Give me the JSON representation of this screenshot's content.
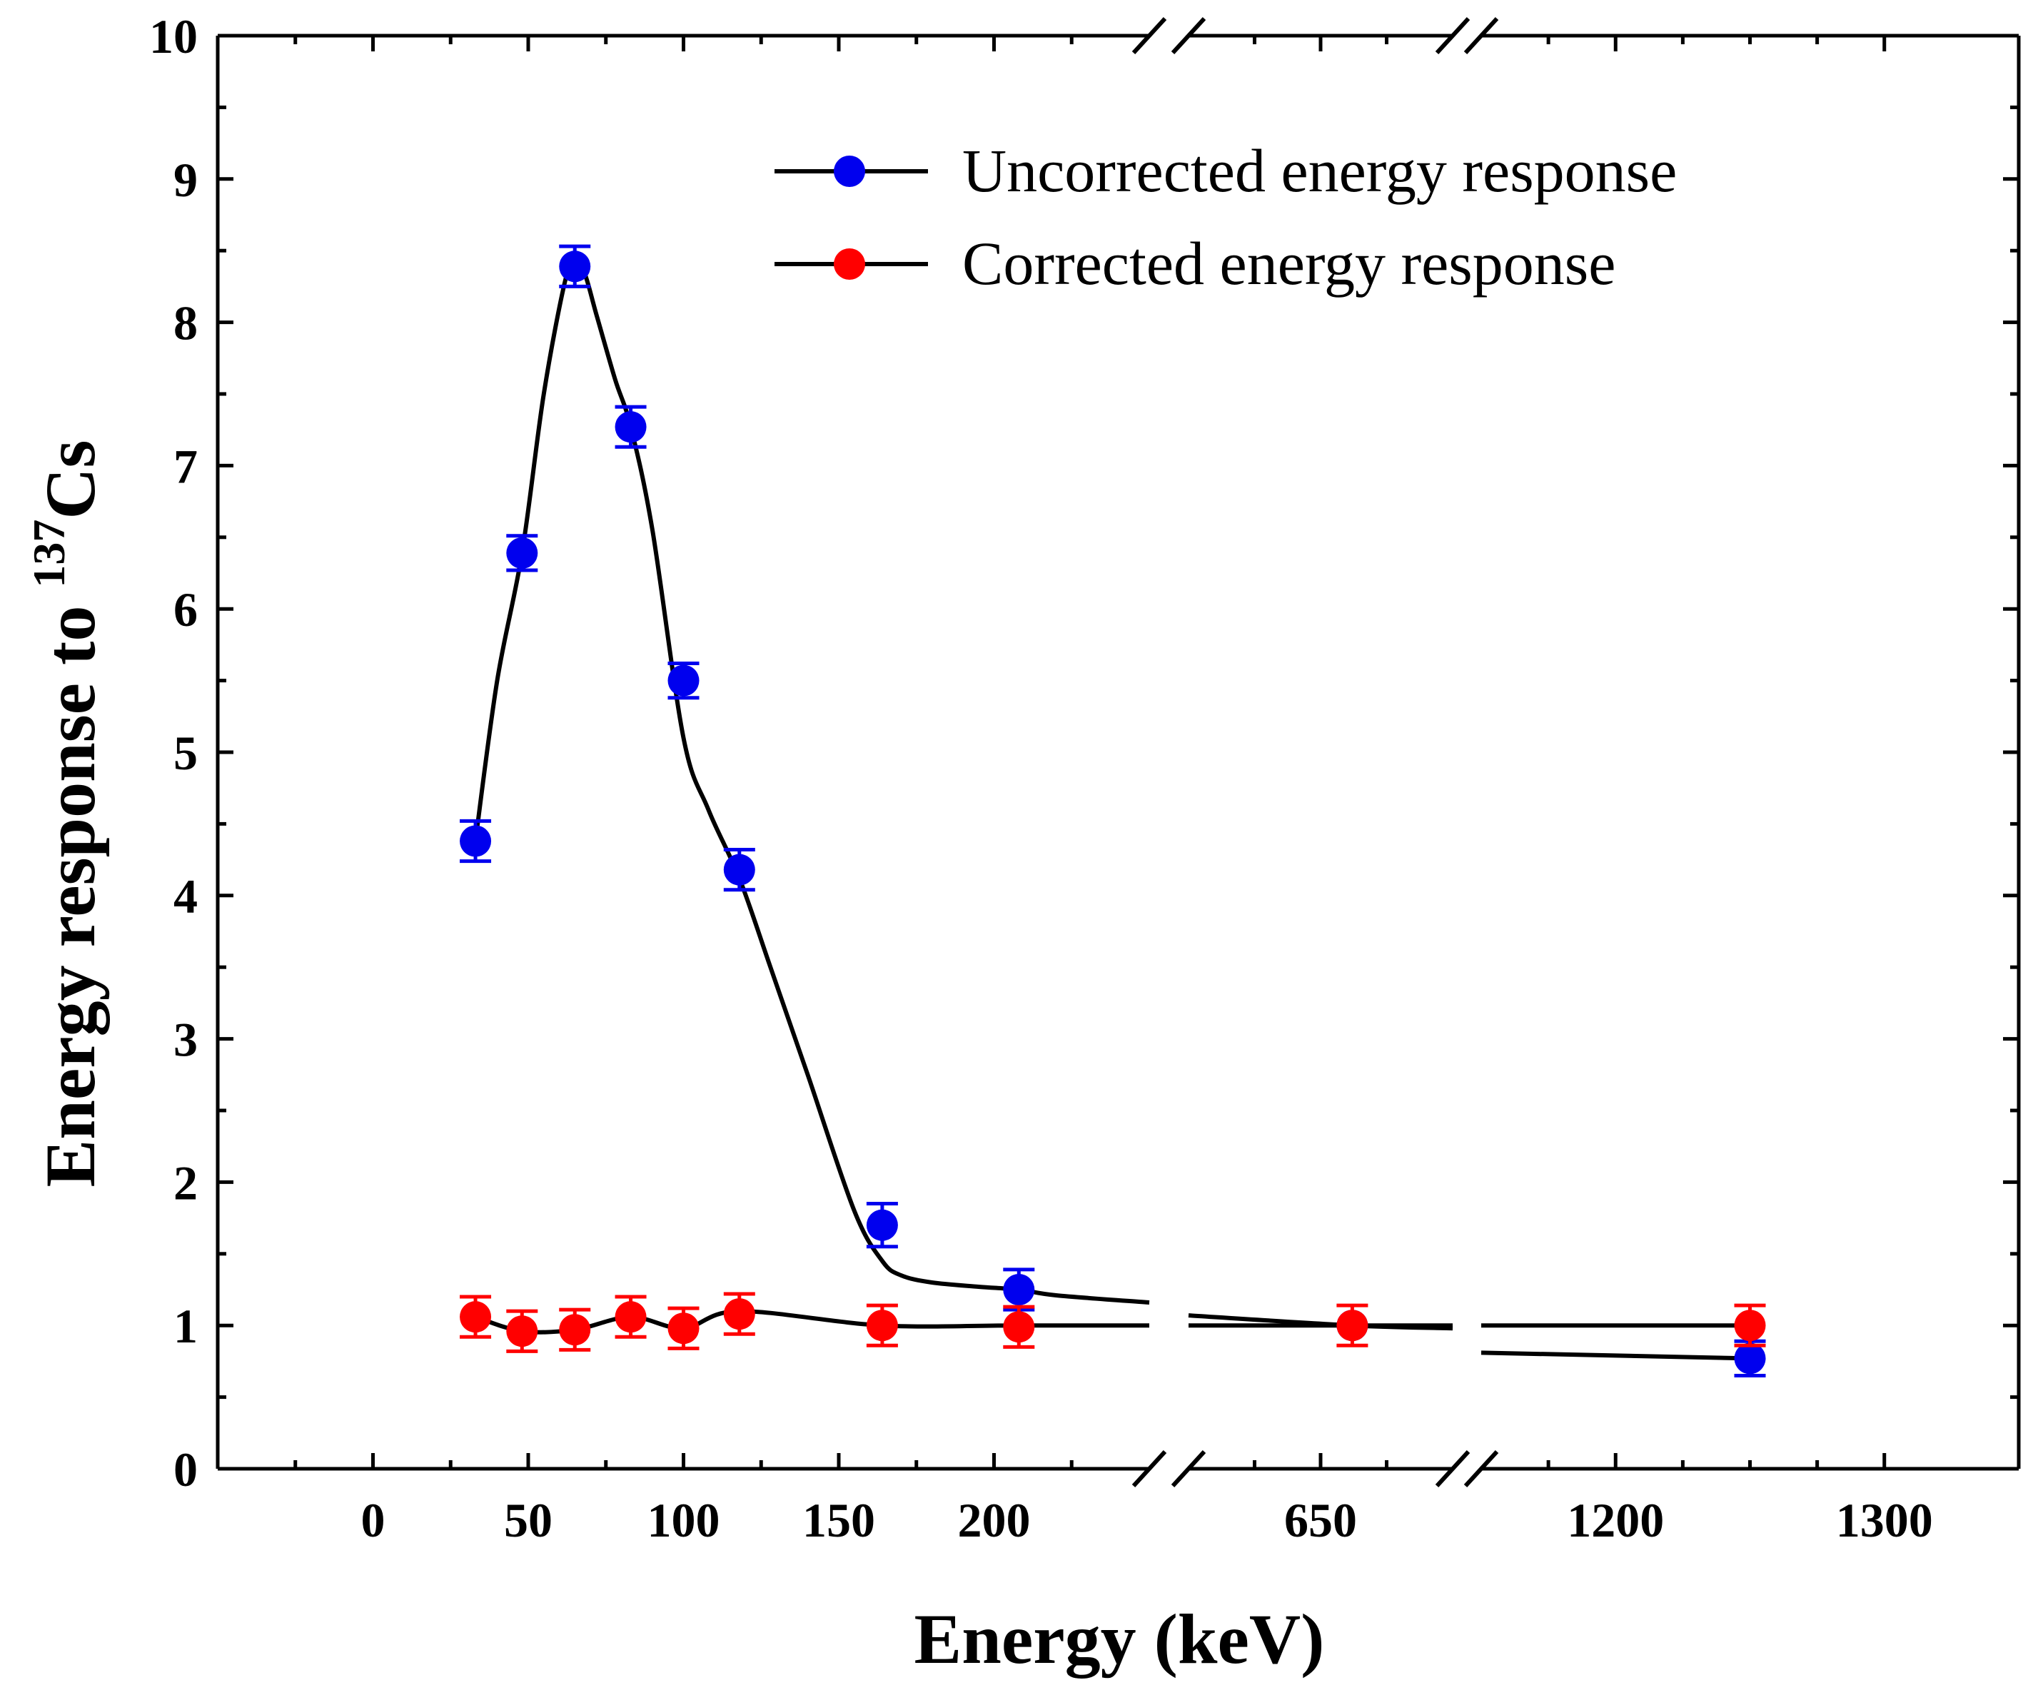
{
  "chart_data": {
    "type": "line",
    "title": "",
    "xlabel": "Energy (keV)",
    "ylabel_main": "Energy response to ",
    "ylabel_sup": "137",
    "ylabel_tail": "Cs",
    "ylim": [
      0,
      10
    ],
    "yticks": [
      "0",
      "1",
      "2",
      "3",
      "4",
      "5",
      "6",
      "7",
      "8",
      "9",
      "10"
    ],
    "x_axis_segments": [
      {
        "range": [
          -50,
          250
        ]
      },
      {
        "range": [
          600,
          700
        ]
      },
      {
        "range": [
          1150,
          1350
        ]
      }
    ],
    "xticks": [
      {
        "value": 0,
        "label": "0"
      },
      {
        "value": 50,
        "label": "50"
      },
      {
        "value": 100,
        "label": "100"
      },
      {
        "value": 150,
        "label": "150"
      },
      {
        "value": 200,
        "label": "200"
      },
      {
        "value": 650,
        "label": "650"
      },
      {
        "value": 1200,
        "label": "1200"
      },
      {
        "value": 1300,
        "label": "1300"
      }
    ],
    "legend_position": "top-right",
    "series": [
      {
        "name": "Uncorrected energy response",
        "color": "#0000ee",
        "x": [
          33,
          48,
          65,
          83,
          100,
          118,
          164,
          208,
          662,
          1250
        ],
        "y": [
          4.38,
          6.39,
          8.39,
          7.27,
          5.5,
          4.18,
          1.7,
          1.25,
          1.0,
          0.77
        ],
        "err": [
          0.14,
          0.12,
          0.14,
          0.14,
          0.12,
          0.14,
          0.15,
          0.14,
          0.0,
          0.12
        ],
        "curve_x": [
          33,
          40,
          48,
          55,
          62,
          65,
          68,
          72,
          78,
          83,
          90,
          100,
          108,
          118,
          128,
          140,
          155,
          164,
          170,
          180,
          195,
          208,
          220,
          250,
          600,
          662,
          700,
          1150,
          1250
        ],
        "curve_y": [
          4.38,
          5.5,
          6.39,
          7.5,
          8.3,
          8.39,
          8.35,
          8.05,
          7.6,
          7.27,
          6.55,
          5.1,
          4.6,
          4.12,
          3.5,
          2.75,
          1.8,
          1.45,
          1.35,
          1.3,
          1.27,
          1.25,
          1.21,
          1.16,
          1.07,
          1.0,
          0.98,
          0.81,
          0.77
        ]
      },
      {
        "name": "Corrected energy response",
        "color": "#ff0000",
        "x": [
          33,
          48,
          65,
          83,
          100,
          118,
          164,
          208,
          662,
          1250
        ],
        "y": [
          1.06,
          0.96,
          0.97,
          1.06,
          0.98,
          1.08,
          1.0,
          0.99,
          1.0,
          1.0
        ],
        "err": [
          0.14,
          0.14,
          0.14,
          0.14,
          0.14,
          0.14,
          0.14,
          0.14,
          0.14,
          0.14
        ],
        "curve_x": [
          33,
          48,
          65,
          83,
          100,
          118,
          164,
          208,
          250,
          600,
          700,
          1150,
          1250
        ],
        "curve_y": [
          1.06,
          0.96,
          0.97,
          1.06,
          0.98,
          1.1,
          1.0,
          1.0,
          1.0,
          1.0,
          1.0,
          1.0,
          1.0
        ]
      }
    ]
  }
}
